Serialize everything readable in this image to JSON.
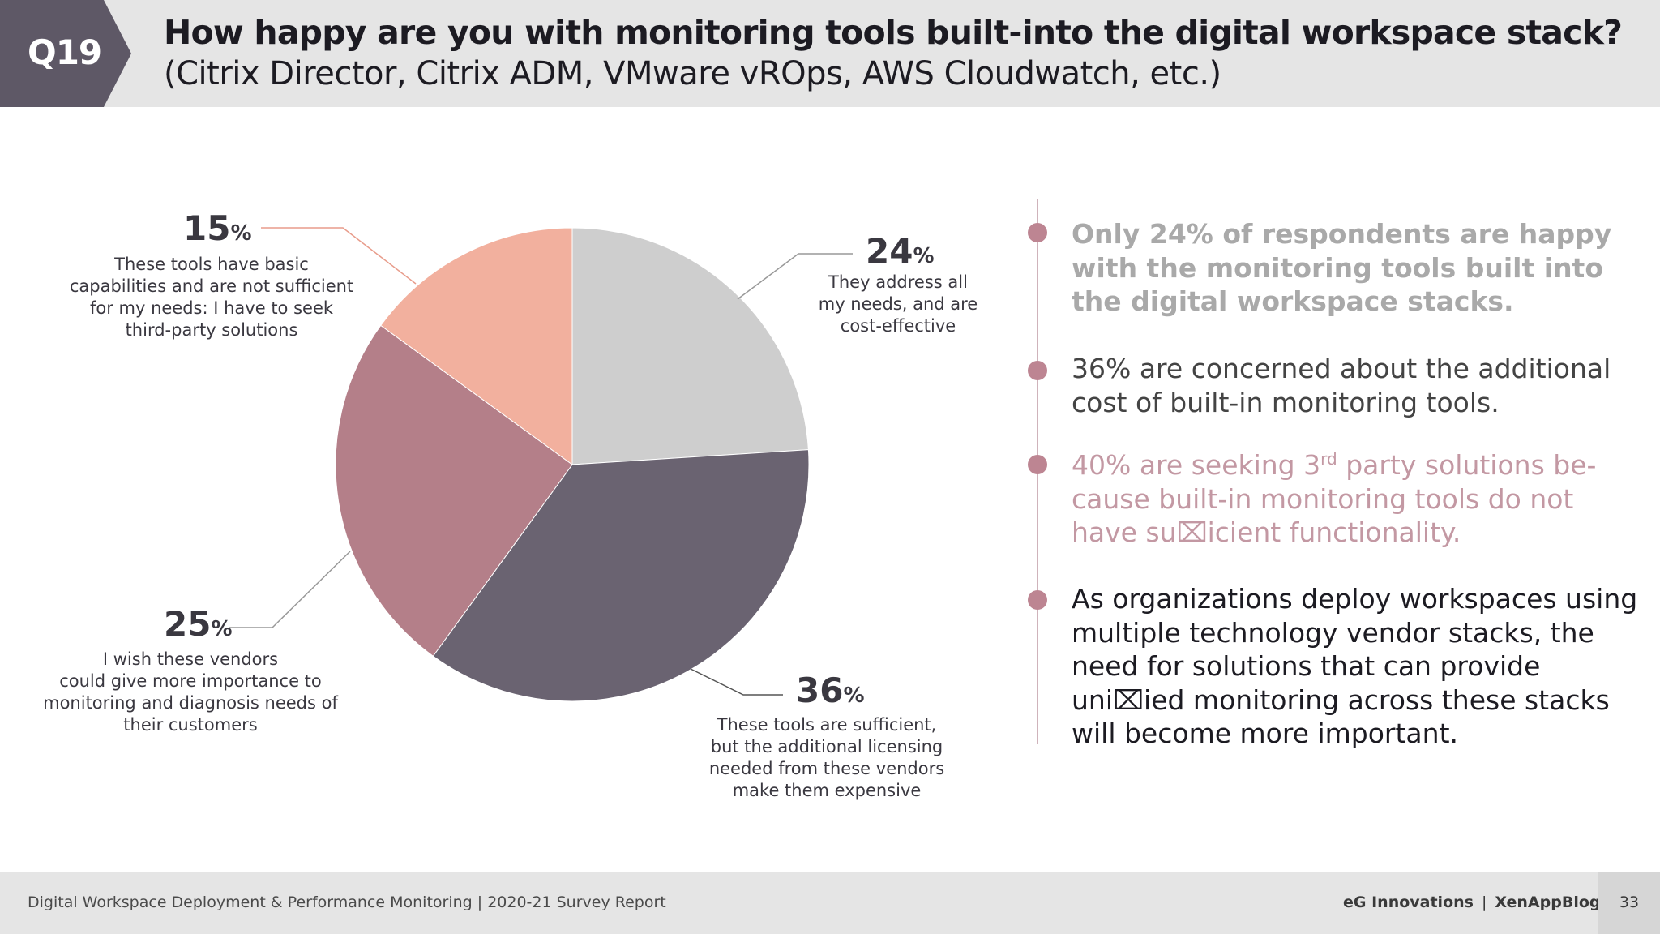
{
  "header": {
    "badge": "Q19",
    "title": "How happy are you with monitoring tools built-into the digital workspace stack?",
    "subtitle": "(Citrix Director, Citrix ADM, VMware vROps, AWS Cloudwatch, etc.)"
  },
  "chart_data": {
    "type": "pie",
    "title": "How happy are you with monitoring tools built-into the digital workspace stack?",
    "slices": [
      {
        "name": "cost-effective",
        "value": 24,
        "label": "24",
        "unit": "%",
        "color": "#cecece",
        "description": [
          "They address all",
          "my needs, and are",
          "cost-effective"
        ]
      },
      {
        "name": "expensive",
        "value": 36,
        "label": "36",
        "unit": "%",
        "color": "#6a6371",
        "description": [
          "These tools are sufficient,",
          "but the additional licensing",
          "needed from these vendors",
          "make them expensive"
        ]
      },
      {
        "name": "vendor-importance",
        "value": 25,
        "label": "25",
        "unit": "%",
        "color": "#b47f89",
        "description": [
          "I wish these vendors",
          "could give more importance to",
          "monitoring and diagnosis needs of",
          "their customers"
        ]
      },
      {
        "name": "basic",
        "value": 15,
        "label": "15",
        "unit": "%",
        "color": "#f2b09e",
        "description": [
          "These tools have basic",
          "capabilities and are not sufficient",
          "for my needs: I have to seek",
          "third-party solutions"
        ]
      }
    ]
  },
  "bullets": {
    "b1": "Only 24% of respondents are happy with the monitoring tools built into the digital workspace stacks.",
    "b2": "36% are concerned about the additional cost of built-in monitoring tools.",
    "b3_pre": "40% are seeking 3",
    "b3_sup": "rd",
    "b3_post": " party solutions be-cause built-in monitoring tools do not have su⌧icient functionality.",
    "b4": "As organizations deploy workspaces using multiple technology vendor stacks, the need for solutions that can provide uni⌧ied monitoring across these stacks will become more important."
  },
  "colors": {
    "header_bg": "#e5e5e5",
    "badge_bg": "#5e5866",
    "bullet": "#bd8592"
  },
  "footer": {
    "left": "Digital Workspace Deployment & Performance Monitoring | 2020-21 Survey Report",
    "brand1": "eG Innovations",
    "separator": "|",
    "brand2": "XenAppBlog",
    "page": "33"
  }
}
